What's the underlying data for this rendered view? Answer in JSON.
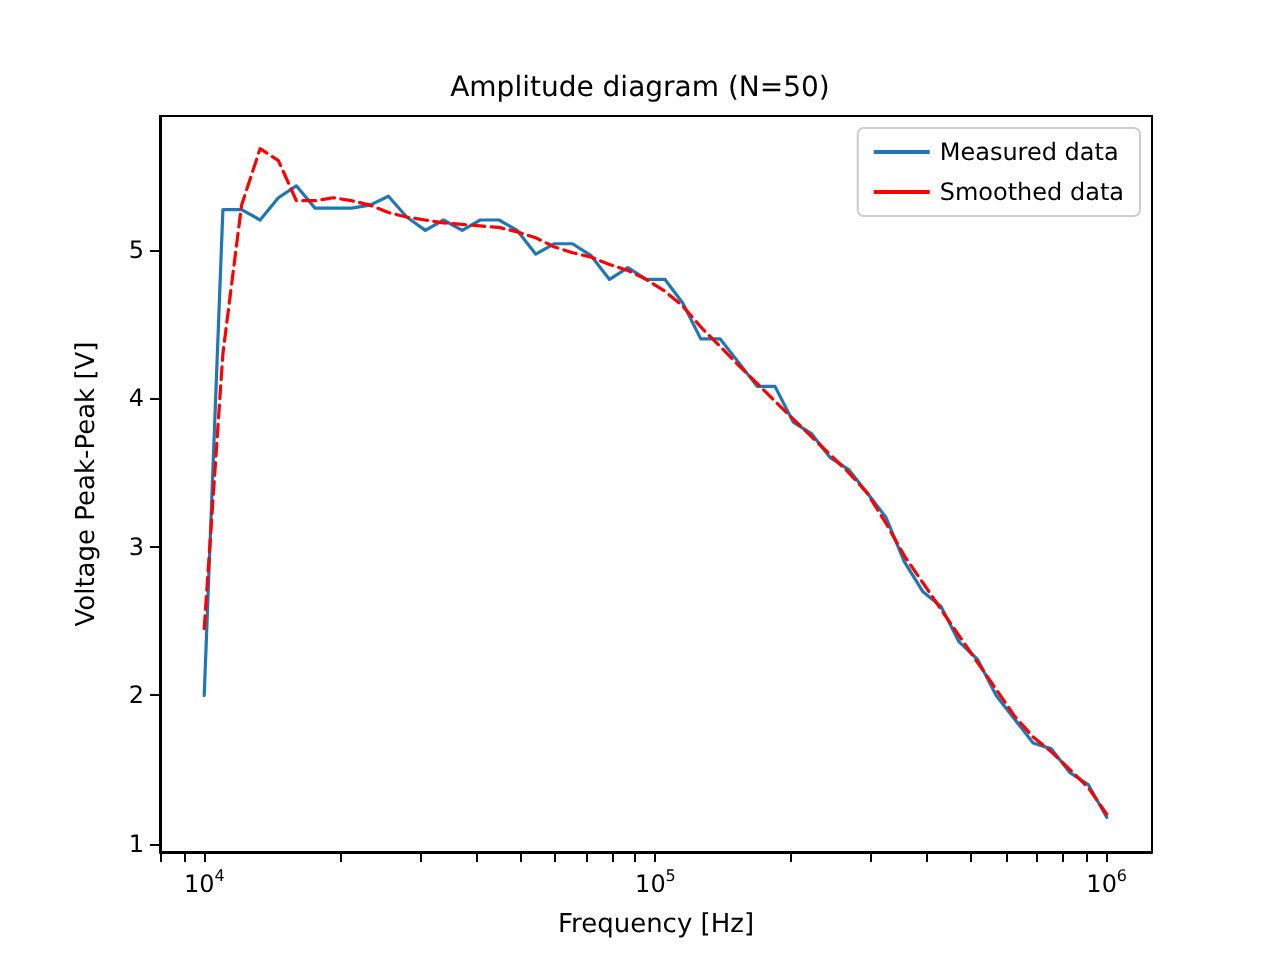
{
  "chart_data": {
    "type": "line",
    "title": "Amplitude diagram (N=50)",
    "xlabel": "Frequency [Hz]",
    "ylabel": "Voltage Peak-Peak [V]",
    "log": "x",
    "x": [
      10000,
      11000,
      12100,
      13300,
      14600,
      16000,
      17600,
      19300,
      21200,
      23300,
      25600,
      28100,
      30900,
      33900,
      37300,
      40900,
      45000,
      49400,
      54300,
      59600,
      65500,
      72000,
      79100,
      86900,
      95400,
      105000,
      115000,
      126000,
      139000,
      153000,
      168000,
      184000,
      202000,
      222000,
      244000,
      268000,
      295000,
      324000,
      356000,
      391000,
      429000,
      471000,
      518000,
      569000,
      625000,
      687000,
      754000,
      829000,
      910000,
      1000000
    ],
    "series": [
      {
        "name": "Measured data",
        "color": "#1f77b4",
        "line_style": "solid",
        "values": [
          2.0,
          5.27,
          5.27,
          5.2,
          5.35,
          5.43,
          5.28,
          5.28,
          5.28,
          5.3,
          5.36,
          5.22,
          5.13,
          5.2,
          5.13,
          5.2,
          5.2,
          5.13,
          4.97,
          5.04,
          5.04,
          4.96,
          4.8,
          4.88,
          4.8,
          4.8,
          4.64,
          4.4,
          4.4,
          4.24,
          4.08,
          4.08,
          3.84,
          3.76,
          3.6,
          3.52,
          3.36,
          3.2,
          2.9,
          2.7,
          2.6,
          2.36,
          2.24,
          2.0,
          1.84,
          1.68,
          1.64,
          1.48,
          1.4,
          1.18
        ]
      },
      {
        "name": "Smoothed data",
        "color": "#ff0000",
        "line_style": "dashed",
        "values": [
          2.45,
          4.3,
          5.3,
          5.68,
          5.6,
          5.33,
          5.33,
          5.35,
          5.33,
          5.3,
          5.25,
          5.22,
          5.2,
          5.18,
          5.17,
          5.16,
          5.15,
          5.12,
          5.08,
          5.02,
          4.98,
          4.95,
          4.9,
          4.86,
          4.8,
          4.72,
          4.62,
          4.48,
          4.35,
          4.22,
          4.1,
          3.98,
          3.86,
          3.74,
          3.62,
          3.5,
          3.36,
          3.16,
          2.94,
          2.76,
          2.58,
          2.4,
          2.22,
          2.04,
          1.86,
          1.72,
          1.62,
          1.5,
          1.38,
          1.2
        ]
      }
    ],
    "xlim": [
      7980,
      1260000
    ],
    "xticks": [
      {
        "value": 8000,
        "label": null
      },
      {
        "value": 9000,
        "label": null
      },
      {
        "value": 10000,
        "label": "10$^{4}$"
      },
      {
        "value": 20000,
        "label": null
      },
      {
        "value": 30000,
        "label": null
      },
      {
        "value": 40000,
        "label": null
      },
      {
        "value": 50000,
        "label": null
      },
      {
        "value": 60000,
        "label": null
      },
      {
        "value": 70000,
        "label": null
      },
      {
        "value": 80000,
        "label": null
      },
      {
        "value": 90000,
        "label": null
      },
      {
        "value": 100000,
        "label": "10$^{5}$"
      },
      {
        "value": 200000,
        "label": null
      },
      {
        "value": 300000,
        "label": null
      },
      {
        "value": 400000,
        "label": null
      },
      {
        "value": 500000,
        "label": null
      },
      {
        "value": 600000,
        "label": null
      },
      {
        "value": 700000,
        "label": null
      },
      {
        "value": 800000,
        "label": null
      },
      {
        "value": 900000,
        "label": null
      },
      {
        "value": 1000000,
        "label": "10$^{6}$"
      }
    ],
    "ylim": [
      0.946,
      5.9
    ],
    "yticks": [
      1,
      2,
      3,
      4,
      5
    ],
    "grid": false,
    "legend": "top right",
    "marker": "none"
  }
}
